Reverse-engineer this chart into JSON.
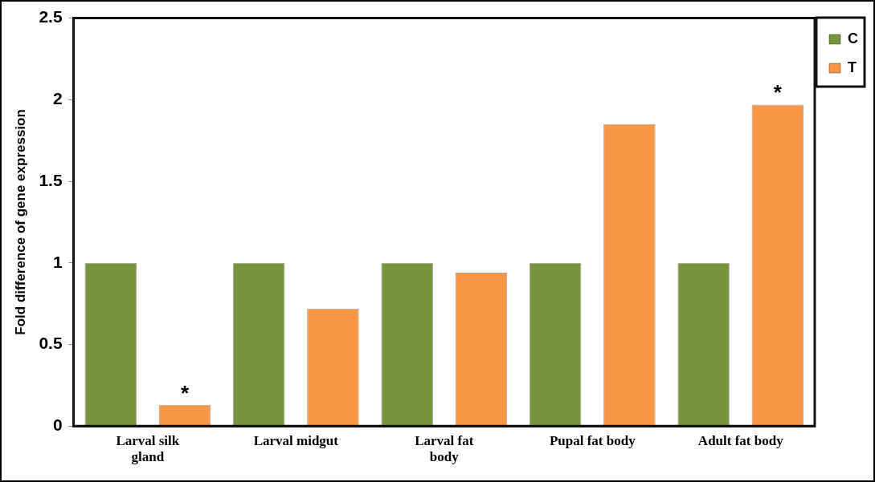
{
  "chart_data": {
    "type": "bar",
    "ylabel": "Fold difference of gene expression",
    "categories": [
      "Larval silk gland",
      "Larval midgut",
      "Larval fat body",
      "Pupal fat body",
      "Adult fat body"
    ],
    "series": [
      {
        "name": "C",
        "color": "#77933c",
        "values": [
          1,
          1,
          1,
          1,
          1
        ]
      },
      {
        "name": "T",
        "color": "#f79646",
        "values": [
          0.13,
          0.72,
          0.94,
          1.85,
          1.97
        ],
        "value_labels": [
          "*",
          null,
          null,
          null,
          "*"
        ]
      }
    ],
    "ylim": [
      0,
      2.5
    ],
    "yticks": [
      0,
      0.5,
      1,
      1.5,
      2,
      2.5
    ],
    "grid": false,
    "legend": "top right"
  }
}
